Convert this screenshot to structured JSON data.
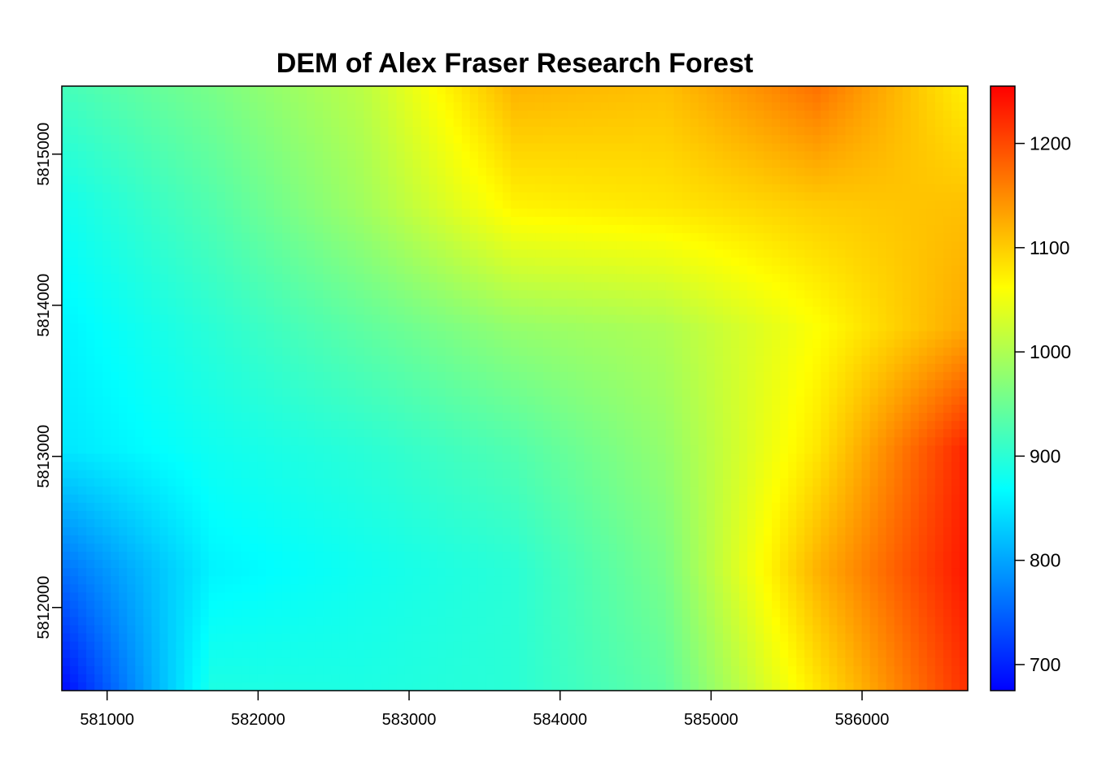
{
  "chart_data": {
    "type": "heatmap",
    "title": "DEM of Alex Fraser Research Forest",
    "xlabel": "",
    "ylabel": "",
    "xlim": [
      580700,
      586700
    ],
    "ylim": [
      5811450,
      5815450
    ],
    "x_ticks": [
      581000,
      582000,
      583000,
      584000,
      585000,
      586000
    ],
    "y_ticks": [
      5812000,
      5813000,
      5814000,
      5815000
    ],
    "x_tick_labels": [
      "581000",
      "582000",
      "583000",
      "584000",
      "585000",
      "586000"
    ],
    "y_tick_labels": [
      "5812000",
      "5813000",
      "5814000",
      "5815000"
    ],
    "legend": {
      "placement": "right",
      "range": [
        675,
        1255
      ],
      "ticks": [
        700,
        800,
        900,
        1000,
        1100,
        1200
      ],
      "tick_labels": [
        "700",
        "800",
        "900",
        "1000",
        "1100",
        "1200"
      ]
    },
    "colormap": [
      "#0000ff",
      "#0080ff",
      "#00ffff",
      "#80ff80",
      "#ffff00",
      "#ff8000",
      "#ff0000"
    ],
    "grid": false,
    "elevation_grid": {
      "x": [
        580700,
        581700,
        582700,
        583700,
        584700,
        585700,
        586700
      ],
      "y": [
        5815450,
        5814650,
        5813850,
        5813050,
        5812250,
        5811450
      ],
      "z": [
        [
          920,
          960,
          1010,
          1120,
          1110,
          1170,
          1070
        ],
        [
          880,
          930,
          990,
          1070,
          1080,
          1100,
          1110
        ],
        [
          860,
          900,
          940,
          980,
          1000,
          1060,
          1130
        ],
        [
          850,
          880,
          900,
          930,
          980,
          1080,
          1230
        ],
        [
          760,
          860,
          880,
          900,
          960,
          1120,
          1240
        ],
        [
          680,
          890,
          890,
          900,
          940,
          1080,
          1220
        ]
      ]
    }
  }
}
